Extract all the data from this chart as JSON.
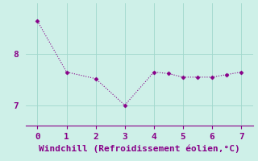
{
  "x": [
    0,
    1,
    2,
    3,
    4,
    4.5,
    5,
    5.5,
    6,
    6.5,
    7
  ],
  "y": [
    8.65,
    7.65,
    7.52,
    7.0,
    7.65,
    7.62,
    7.55,
    7.55,
    7.55,
    7.6,
    7.65
  ],
  "line_color": "#880088",
  "marker": "D",
  "markersize": 2.5,
  "linewidth": 0.8,
  "linestyle": "dotted",
  "background_color": "#cef0e8",
  "grid_color": "#a0d8cc",
  "xlabel": "Windchill (Refroidissement éolien,°C)",
  "xlabel_color": "#880088",
  "xlabel_fontsize": 8,
  "xlim": [
    -0.4,
    7.4
  ],
  "ylim": [
    6.6,
    9.0
  ],
  "yticks": [
    7,
    8
  ],
  "xticks": [
    0,
    1,
    2,
    3,
    4,
    5,
    6,
    7
  ],
  "tick_color": "#880088",
  "tick_fontsize": 8,
  "spine_color": "#880088",
  "axis_line_color": "#880088"
}
